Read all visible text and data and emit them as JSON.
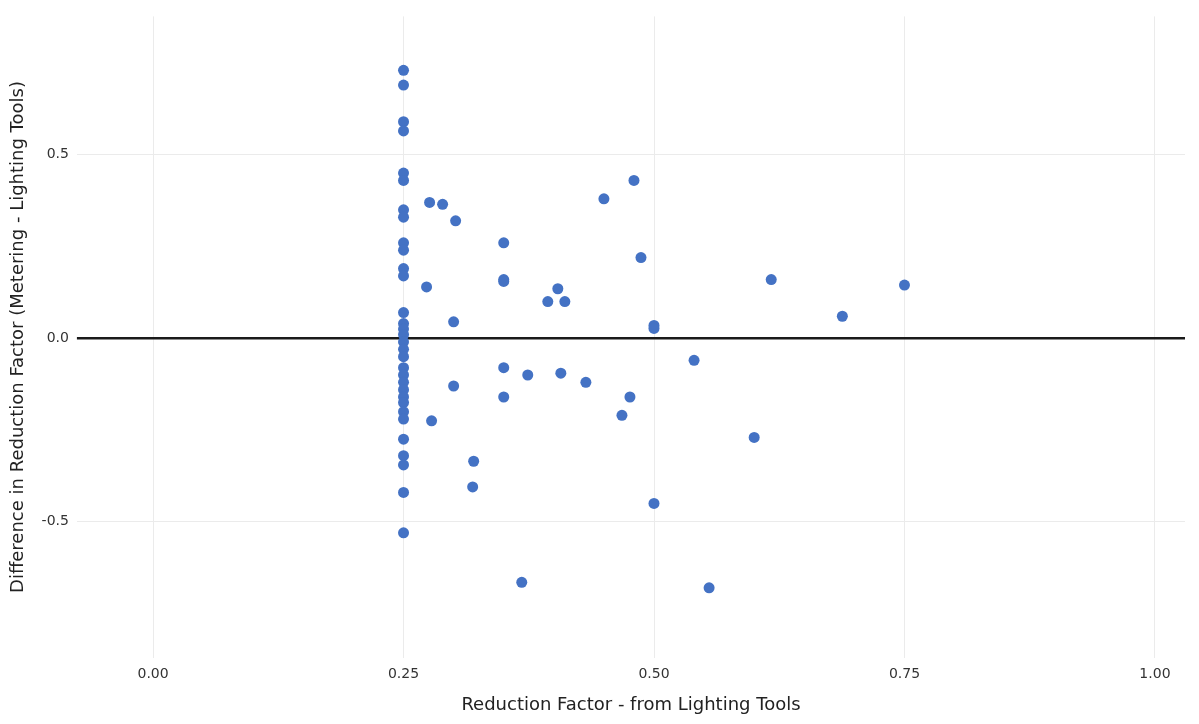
{
  "chart_data": {
    "type": "scatter",
    "xlabel": "Reduction Factor - from Lighting Tools",
    "ylabel": "Difference in Reduction Factor (Metering - Lighting Tools)",
    "series": [
      {
        "color": "#4472c4",
        "x": [
          0.25,
          0.25,
          0.25,
          0.25,
          0.25,
          0.25,
          0.25,
          0.25,
          0.25,
          0.25,
          0.25,
          0.25,
          0.25,
          0.25,
          0.25,
          0.25,
          0.25,
          0.25,
          0.25,
          0.25,
          0.25,
          0.25,
          0.25,
          0.25,
          0.25,
          0.25,
          0.25,
          0.25,
          0.25,
          0.25,
          0.25,
          0.25,
          0.276,
          0.289,
          0.302,
          0.273,
          0.3,
          0.278,
          0.3,
          0.32,
          0.319,
          0.35,
          0.35,
          0.35,
          0.35,
          0.35,
          0.374,
          0.368,
          0.394,
          0.404,
          0.411,
          0.407,
          0.432,
          0.45,
          0.48,
          0.487,
          0.468,
          0.476,
          0.5,
          0.5,
          0.5,
          0.54,
          0.6,
          0.555,
          0.617,
          0.688,
          0.75
        ],
        "values": [
          0.73,
          0.69,
          0.59,
          0.565,
          0.45,
          0.43,
          0.35,
          0.33,
          0.26,
          0.24,
          0.19,
          0.17,
          0.07,
          0.04,
          0.025,
          0.01,
          -0.01,
          -0.03,
          -0.05,
          -0.08,
          -0.1,
          -0.12,
          -0.14,
          -0.16,
          -0.175,
          -0.2,
          -0.22,
          -0.275,
          -0.32,
          -0.345,
          -0.42,
          -0.53,
          0.37,
          0.365,
          0.32,
          0.14,
          0.045,
          -0.225,
          -0.13,
          -0.335,
          -0.405,
          0.26,
          0.16,
          0.155,
          -0.08,
          -0.16,
          -0.1,
          -0.665,
          0.1,
          0.135,
          0.1,
          -0.095,
          -0.12,
          0.38,
          0.43,
          0.22,
          -0.21,
          -0.16,
          0.035,
          0.027,
          -0.45,
          -0.06,
          -0.27,
          -0.68,
          0.16,
          0.06,
          0.145
        ]
      }
    ],
    "xlim": [
      -0.076,
      1.03
    ],
    "ylim": [
      -0.87,
      0.877
    ],
    "xticks": [
      {
        "value": 0,
        "label": "0.00"
      },
      {
        "value": 0.25,
        "label": "0.25"
      },
      {
        "value": 0.5,
        "label": "0.50"
      },
      {
        "value": 0.75,
        "label": "0.75"
      },
      {
        "value": 1,
        "label": "1.00"
      }
    ],
    "yticks": [
      {
        "value": -0.5,
        "label": "-0.5"
      },
      {
        "value": 0,
        "label": "0.0"
      },
      {
        "value": 0.5,
        "label": "0.5"
      }
    ],
    "ref_lines": [
      {
        "axis": "y",
        "value": 0,
        "color": "#1a1a1a"
      }
    ],
    "grid": true,
    "marker": "circle"
  }
}
